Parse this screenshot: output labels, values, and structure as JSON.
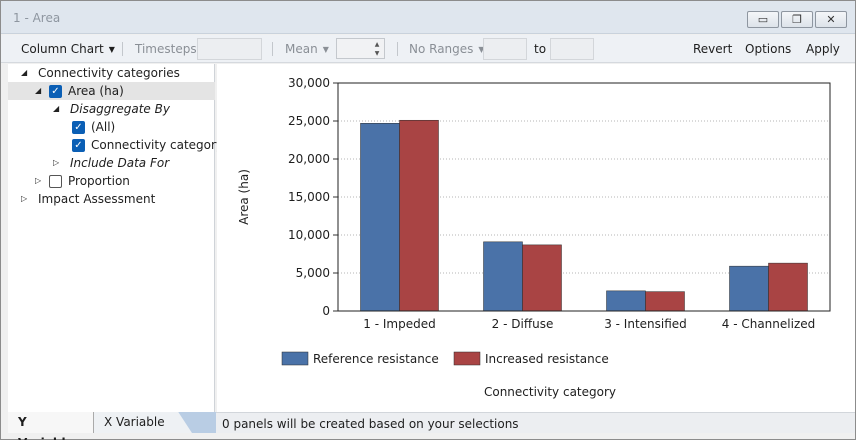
{
  "window": {
    "title": "1 - Area",
    "minimize_glyph": "▭",
    "restore_glyph": "❐",
    "close_glyph": "✕"
  },
  "toolbar": {
    "chart_type": "Column Chart",
    "timesteps_label": "Timesteps",
    "timesteps_value": "",
    "aggregate": "Mean",
    "aggregate_value": "",
    "ranges": "No Ranges",
    "range_from": "",
    "to_label": "to",
    "range_to": "",
    "revert": "Revert",
    "options": "Options",
    "apply": "Apply"
  },
  "tree": {
    "items": [
      {
        "label": "Connectivity categories",
        "expander": "◢",
        "checkbox": null,
        "italic": false,
        "selected": false
      },
      {
        "label": "Area (ha)",
        "expander": "◢",
        "checkbox": true,
        "italic": false,
        "selected": true
      },
      {
        "label": "Disaggregate By",
        "expander": "◢",
        "checkbox": null,
        "italic": true,
        "selected": false
      },
      {
        "label": "(All)",
        "expander": "",
        "checkbox": true,
        "italic": false,
        "selected": false
      },
      {
        "label": "Connectivity category",
        "expander": "",
        "checkbox": true,
        "italic": false,
        "selected": false
      },
      {
        "label": "Include Data For",
        "expander": "▷",
        "checkbox": null,
        "italic": true,
        "selected": false
      },
      {
        "label": "Proportion",
        "expander": "▷",
        "checkbox": false,
        "italic": false,
        "selected": false
      },
      {
        "label": "Impact Assessment",
        "expander": "▷",
        "checkbox": null,
        "italic": false,
        "selected": false
      }
    ]
  },
  "tabs": {
    "y_variables": "Y Variables",
    "x_variable": "X Variable"
  },
  "status": {
    "text": "0 panels will be created based on your selections"
  },
  "chart_data": {
    "type": "bar",
    "categories": [
      "1 - Impeded",
      "2 - Diffuse",
      "3 - Intensified",
      "4 - Channelized"
    ],
    "series": [
      {
        "name": "Reference resistance",
        "color": "#4a72a8",
        "values": [
          24700,
          9100,
          2650,
          5900
        ]
      },
      {
        "name": "Increased resistance",
        "color": "#a94444",
        "values": [
          25100,
          8700,
          2550,
          6300
        ]
      }
    ],
    "xlabel": "Connectivity category",
    "ylabel": "Area (ha)",
    "ylim": [
      0,
      30000
    ],
    "yticks": [
      "0",
      "5,000",
      "10,000",
      "15,000",
      "20,000",
      "25,000",
      "30,000"
    ],
    "grid": true,
    "legend": "bottom"
  }
}
